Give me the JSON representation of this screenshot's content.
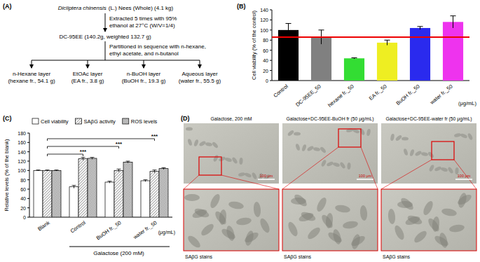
{
  "panel_labels": [
    "(A)",
    "(B)",
    "(C)",
    "(D)"
  ],
  "diagram": {
    "source": {
      "species": "Dicliptera chinensis",
      "text": "(L.) Nees (Whole) (4.1 kg)"
    },
    "step1": [
      "Extracted 5 times with 95%",
      "ethanol at 27°C (W/V=1/4)"
    ],
    "extract": "DC-95EE (140.2g, weighted 132.7 g)",
    "step2": [
      "Partitioned in sequence with n-hexane,",
      "ethyl acetate, and n-butanol"
    ],
    "layers": [
      {
        "name": "n-Hexane layer",
        "detail": "(hexane fr., 54.1 g)"
      },
      {
        "name": "EtOAc layer",
        "detail": "(EA fr., 3.8 g)"
      },
      {
        "name": "n-BuOH layer",
        "detail": "(BuOH fr., 19.3 g)"
      },
      {
        "name": "Aqueous layer",
        "detail": "(water fr., 55.5 g)"
      }
    ]
  },
  "chart_data": [
    {
      "type": "bar",
      "y_label": "Cell viability (% of the control)",
      "categories": [
        "Control",
        "DC-95EE_50",
        "hexane fr._50",
        "EA fr._50",
        "BuOH fr._50",
        "water fr._50"
      ],
      "values": [
        100,
        86,
        44,
        75,
        104,
        116
      ],
      "errors": [
        13,
        14,
        1,
        5,
        3,
        12
      ],
      "colors": [
        "#000000",
        "#808080",
        "#33dd33",
        "#eeee22",
        "#2a2aee",
        "#ee33ee"
      ],
      "ylim": [
        0,
        140
      ],
      "yticks": [
        0,
        20,
        40,
        60,
        80,
        100,
        120,
        140
      ],
      "reference_line": 86,
      "unit_note": "(μg/mL)"
    },
    {
      "type": "bar",
      "y_label": "Relative levels (% of the blank)",
      "categories": [
        "Blank",
        "Control",
        "BuOH fr._50",
        "water fr._50"
      ],
      "series": [
        {
          "name": "Cell viability",
          "color": "#ffffff",
          "values": [
            100,
            65,
            75,
            78
          ],
          "errors": [
            1,
            3,
            2,
            2
          ]
        },
        {
          "name": "SAβG activity",
          "color": "#f2f2f2",
          "values": [
            100,
            125,
            100,
            98
          ],
          "errors": [
            1,
            3,
            3,
            3
          ]
        },
        {
          "name": "ROS levels",
          "color": "#d4d4d4",
          "values": [
            100,
            126,
            118,
            104
          ],
          "errors": [
            1,
            2,
            2,
            2
          ]
        }
      ],
      "ylim": [
        0,
        180
      ],
      "yticks": [
        0,
        20,
        40,
        60,
        80,
        100,
        120,
        140,
        160,
        180
      ],
      "legend": "top",
      "annotations": [
        {
          "text": "***",
          "category": "Control"
        },
        {
          "text": "***",
          "category": "BuOH fr._50"
        },
        {
          "text": "***",
          "category": "water fr._50"
        }
      ],
      "group_label": {
        "text": "Galactose (200 mM)",
        "categories": [
          "Control",
          "BuOH fr._50",
          "water fr._50"
        ]
      },
      "unit_note": "(μg/mL)"
    }
  ],
  "micrographs": [
    {
      "title": "Galactose, 200 mM",
      "caption": "SAβG stains",
      "scale": "100 μm"
    },
    {
      "title": "Galactose+DC-95EE-BuOH fr (50 μg/mL)",
      "caption": "SAβG stains",
      "scale": "100 μm"
    },
    {
      "title": "Galactose+DC-95EE-water fr (50 μg/mL)",
      "caption": "SAβG stains",
      "scale": "100 μm"
    }
  ]
}
